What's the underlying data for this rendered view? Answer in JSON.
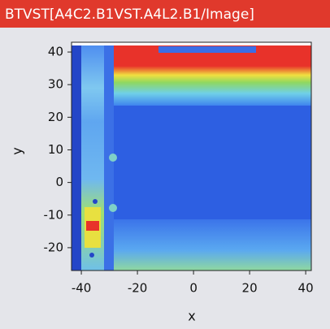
{
  "chart_data": {
    "type": "heatmap",
    "title": "BTVST[A4C2.B1VST.A4L2.B1/Image]",
    "x_label": "x",
    "y_label": "y",
    "xlim": [
      -43.5,
      42
    ],
    "xticks": [
      -40,
      -20,
      0,
      20,
      40
    ],
    "ylim": [
      -27,
      43
    ],
    "yticks": [
      -20,
      -10,
      0,
      10,
      20,
      30,
      40
    ]
  }
}
